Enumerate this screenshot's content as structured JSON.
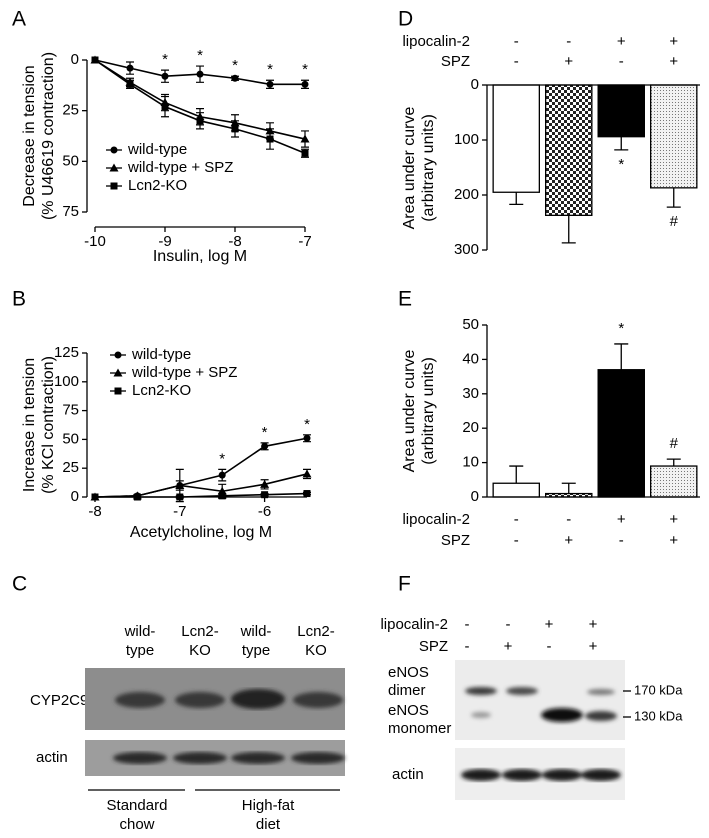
{
  "chart_data": [
    {
      "type": "line",
      "panel": "A",
      "xlabel": "Insulin, log M",
      "ylabel": [
        "Decrease in tension",
        "(% U46619 contraction)"
      ],
      "x": [
        -10,
        -9.5,
        -9,
        -8.5,
        -8,
        -7.5,
        -7
      ],
      "series": [
        {
          "name": "wild-type",
          "marker": "circle",
          "color": "#000000",
          "values": [
            0,
            4,
            8,
            7,
            9,
            12,
            12
          ],
          "errors": [
            0,
            3,
            3,
            4,
            1,
            2,
            2
          ]
        },
        {
          "name": "wild-type + SPZ",
          "marker": "triangle",
          "color": "#000000",
          "values": [
            0,
            11,
            21,
            28,
            31,
            35,
            39
          ],
          "errors": [
            0,
            2,
            4,
            4,
            4,
            4,
            4
          ]
        },
        {
          "name": "Lcn2-KO",
          "marker": "square",
          "color": "#000000",
          "values": [
            0,
            12,
            23,
            30,
            34,
            39,
            46
          ],
          "errors": [
            0,
            2,
            5,
            4,
            4,
            5,
            2
          ]
        }
      ],
      "xlim": [
        -10,
        -7
      ],
      "xticks": [
        -10,
        -9,
        -8,
        -7
      ],
      "ylim": [
        0,
        75
      ],
      "yticks": [
        0,
        25,
        50,
        75
      ],
      "y_inverted": true,
      "legend": "lower left",
      "annotations": [
        {
          "x": -9,
          "text": "*"
        },
        {
          "x": -8.5,
          "text": "*"
        },
        {
          "x": -8,
          "text": "*"
        },
        {
          "x": -7.5,
          "text": "*"
        },
        {
          "x": -7,
          "text": "*"
        }
      ]
    },
    {
      "type": "line",
      "panel": "B",
      "xlabel": "Acetylcholine, log M",
      "ylabel": [
        "Increase in tension",
        "(% KCl contraction)"
      ],
      "x": [
        -8,
        -7.5,
        -7,
        -6.5,
        -6,
        -5.5
      ],
      "series": [
        {
          "name": "wild-type",
          "marker": "circle",
          "color": "#000000",
          "values": [
            0,
            1,
            10,
            19,
            44,
            51
          ],
          "errors": [
            0,
            1,
            4,
            5,
            3,
            3
          ]
        },
        {
          "name": "wild-type + SPZ",
          "marker": "triangle",
          "color": "#000000",
          "values": [
            0,
            1,
            10,
            5,
            11,
            20
          ],
          "errors": [
            0,
            1,
            14,
            6,
            4,
            4
          ]
        },
        {
          "name": "Lcn2-KO",
          "marker": "square",
          "color": "#000000",
          "values": [
            0,
            0,
            0,
            1,
            2,
            3
          ],
          "errors": [
            0,
            0,
            1,
            2,
            1,
            1
          ]
        }
      ],
      "xlim": [
        -8,
        -5.5
      ],
      "xticks": [
        -8,
        -7,
        -6
      ],
      "ylim": [
        0,
        125
      ],
      "yticks": [
        0,
        25,
        50,
        75,
        100,
        125
      ],
      "y_inverted": false,
      "legend": "upper left",
      "annotations": [
        {
          "x": -6.5,
          "text": "*"
        },
        {
          "x": -6,
          "text": "*"
        },
        {
          "x": -5.5,
          "text": "*"
        }
      ]
    },
    {
      "type": "bar",
      "panel": "D",
      "ylabel": [
        "Area under curve",
        "(arbitrary units)"
      ],
      "categories": [
        null,
        null,
        null,
        null
      ],
      "values": [
        195,
        237,
        94,
        187
      ],
      "errors": [
        22,
        50,
        24,
        35
      ],
      "bar_styles": [
        "white",
        "checkered",
        "black",
        "dotted"
      ],
      "conditions": [
        {
          "name": "lipocalin-2",
          "signs": [
            "-",
            "-",
            "+",
            "+"
          ]
        },
        {
          "name": "SPZ",
          "signs": [
            "-",
            "+",
            "-",
            "+"
          ]
        }
      ],
      "ylim": [
        0,
        300
      ],
      "yticks": [
        0,
        100,
        200,
        300
      ],
      "y_inverted": true,
      "annotations": [
        {
          "category": 2,
          "text": "*"
        },
        {
          "category": 3,
          "text": "#"
        }
      ]
    },
    {
      "type": "bar",
      "panel": "E",
      "ylabel": [
        "Area under curve",
        "(arbitrary units)"
      ],
      "categories": [
        null,
        null,
        null,
        null
      ],
      "values": [
        4,
        1,
        37,
        9
      ],
      "errors": [
        5,
        3,
        7.5,
        2
      ],
      "bar_styles": [
        "white",
        "checkered",
        "black",
        "dotted"
      ],
      "conditions": [
        {
          "name": "lipocalin-2",
          "signs": [
            "-",
            "-",
            "+",
            "+"
          ]
        },
        {
          "name": "SPZ",
          "signs": [
            "-",
            "+",
            "-",
            "+"
          ]
        }
      ],
      "ylim": [
        0,
        50
      ],
      "yticks": [
        0,
        10,
        20,
        30,
        40,
        50
      ],
      "y_inverted": false,
      "annotations": [
        {
          "category": 2,
          "text": "*"
        },
        {
          "category": 3,
          "text": "#"
        }
      ]
    }
  ],
  "blots": {
    "C": {
      "panel": "C",
      "columns": [
        [
          "wild-",
          "type"
        ],
        [
          "Lcn2-",
          "KO"
        ],
        [
          "wild-",
          "type"
        ],
        [
          "Lcn2-",
          "KO"
        ]
      ],
      "rows": [
        "CYP2C9",
        "actin"
      ],
      "groups": [
        [
          "Standard",
          "chow"
        ],
        [
          "High-fat",
          "diet"
        ]
      ]
    },
    "F": {
      "panel": "F",
      "conditions": [
        {
          "name": "lipocalin-2",
          "signs": [
            "-",
            "-",
            "+",
            "+"
          ]
        },
        {
          "name": "SPZ",
          "signs": [
            "-",
            "+",
            "-",
            "+"
          ]
        }
      ],
      "rows": [
        [
          "eNOS",
          "dimer"
        ],
        [
          "eNOS",
          "monomer"
        ],
        "actin"
      ],
      "markers": [
        "170 kDa",
        "130 kDa"
      ]
    }
  }
}
